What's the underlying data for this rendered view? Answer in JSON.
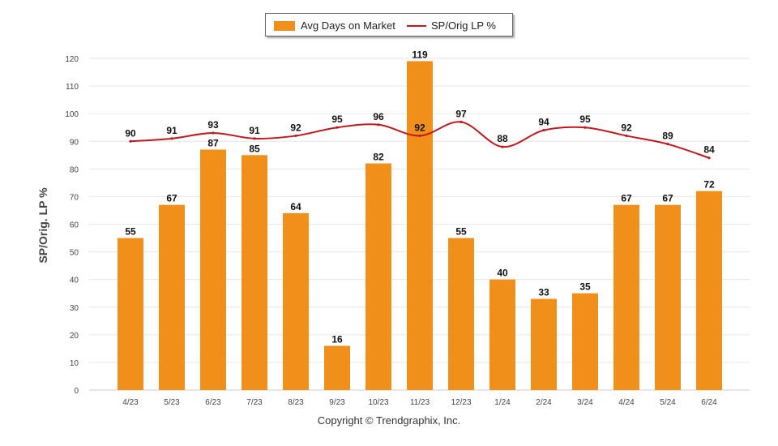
{
  "chart_data": {
    "type": "bar+line",
    "categories": [
      "4/23",
      "5/23",
      "6/23",
      "7/23",
      "8/23",
      "9/23",
      "10/23",
      "11/23",
      "12/23",
      "1/24",
      "2/24",
      "3/24",
      "4/24",
      "5/24",
      "6/24"
    ],
    "series": [
      {
        "name": "Avg Days on Market",
        "type": "bar",
        "color": "#F0901A",
        "values": [
          55,
          67,
          87,
          85,
          64,
          16,
          82,
          119,
          55,
          40,
          33,
          35,
          67,
          67,
          72
        ]
      },
      {
        "name": "SP/Orig LP %",
        "type": "line",
        "color": "#C0191E",
        "values": [
          90,
          91,
          93,
          91,
          92,
          95,
          96,
          92,
          97,
          88,
          94,
          95,
          92,
          89,
          84
        ]
      }
    ],
    "ylabel": "SP/Orig. LP %",
    "xlabel": "",
    "ylim": [
      0,
      120
    ],
    "yticks": [
      0,
      10,
      20,
      30,
      40,
      50,
      60,
      70,
      80,
      90,
      100,
      110,
      120
    ],
    "grid": true,
    "legend": "top-center"
  },
  "footer": {
    "copyright": "Copyright © Trendgraphix, Inc."
  }
}
